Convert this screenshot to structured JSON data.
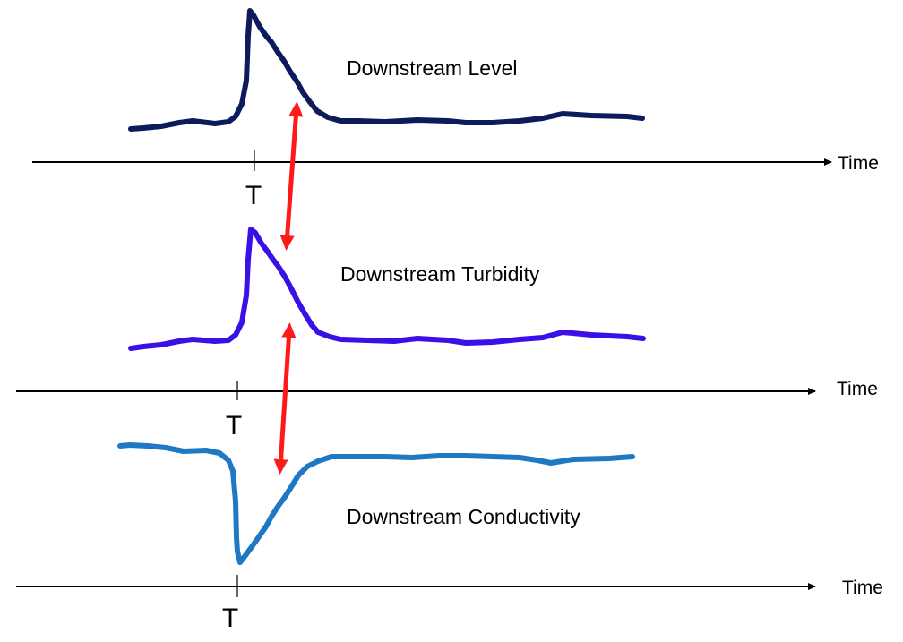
{
  "colors": {
    "axis": "#000000",
    "lag_arrow": "#ff1a1a",
    "level": "#0d1a5c",
    "turbidity": "#3a10e6",
    "conductivity": "#1f78c4"
  },
  "panels": [
    {
      "id": "level",
      "label": "Downstream Level",
      "axis_label": "Time",
      "event_label": "T",
      "signal": "spike-up"
    },
    {
      "id": "turbidity",
      "label": "Downstream Turbidity",
      "axis_label": "Time",
      "event_label": "T",
      "signal": "spike-up"
    },
    {
      "id": "conductivity",
      "label": "Downstream Conductivity",
      "axis_label": "Time",
      "event_label": "T",
      "signal": "dip-down"
    }
  ],
  "lag_arrows": [
    {
      "between": [
        "level",
        "turbidity"
      ],
      "style": "double-headed"
    },
    {
      "between": [
        "turbidity",
        "conductivity"
      ],
      "style": "double-headed"
    }
  ]
}
